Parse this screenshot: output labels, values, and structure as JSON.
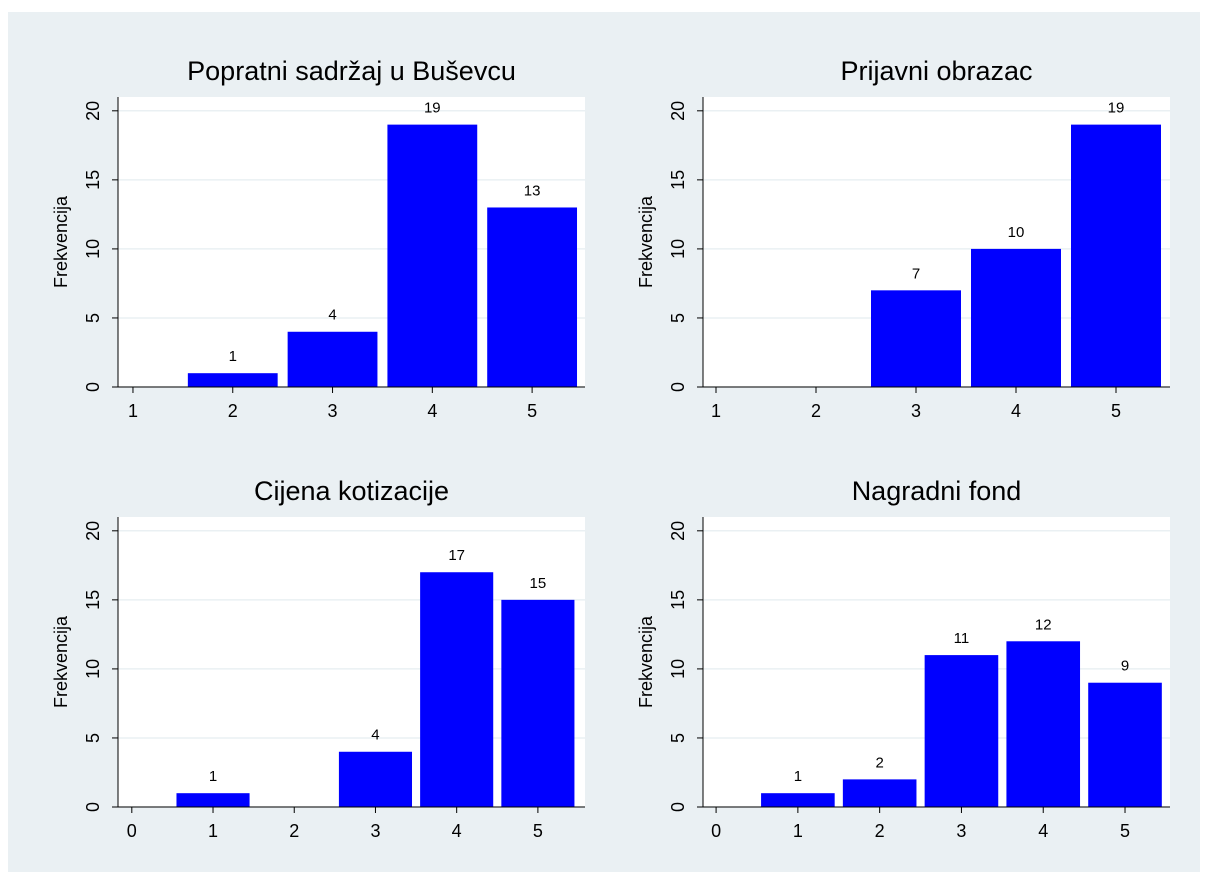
{
  "chart_data": [
    {
      "type": "bar",
      "title": "Popratni sadržaj u Buševcu",
      "ylabel": "Frekvencija",
      "x": [
        2,
        3,
        4,
        5
      ],
      "values": [
        1,
        4,
        19,
        13
      ],
      "color": "#0000ff",
      "xlim": [
        0.85,
        5.53
      ],
      "xticks": [
        1,
        2,
        3,
        4,
        5
      ],
      "ylim": [
        0,
        21
      ],
      "yticks": [
        0,
        5,
        10,
        15,
        20
      ],
      "grid": true
    },
    {
      "type": "bar",
      "title": "Prijavni obrazac",
      "ylabel": "Frekvencija",
      "x": [
        3,
        4,
        5
      ],
      "values": [
        7,
        10,
        19
      ],
      "color": "#0000ff",
      "xlim": [
        0.87,
        5.54
      ],
      "xticks": [
        1,
        2,
        3,
        4,
        5
      ],
      "ylim": [
        0,
        21
      ],
      "yticks": [
        0,
        5,
        10,
        15,
        20
      ],
      "grid": true
    },
    {
      "type": "bar",
      "title": "Cijena kotizacije",
      "ylabel": "Frekvencija",
      "x": [
        1,
        3,
        4,
        5
      ],
      "values": [
        1,
        4,
        17,
        15
      ],
      "color": "#0000ff",
      "xlim": [
        -0.17,
        5.58
      ],
      "xticks": [
        0,
        1,
        2,
        3,
        4,
        5
      ],
      "ylim": [
        0,
        21
      ],
      "yticks": [
        0,
        5,
        10,
        15,
        20
      ],
      "grid": true
    },
    {
      "type": "bar",
      "title": "Nagradni fond",
      "ylabel": "Frekvencija",
      "x": [
        1,
        2,
        3,
        4,
        5
      ],
      "values": [
        1,
        2,
        11,
        12,
        9
      ],
      "color": "#0000ff",
      "xlim": [
        -0.16,
        5.55
      ],
      "xticks": [
        0,
        1,
        2,
        3,
        4,
        5
      ],
      "ylim": [
        0,
        21
      ],
      "yticks": [
        0,
        5,
        10,
        15,
        20
      ],
      "grid": true
    }
  ]
}
